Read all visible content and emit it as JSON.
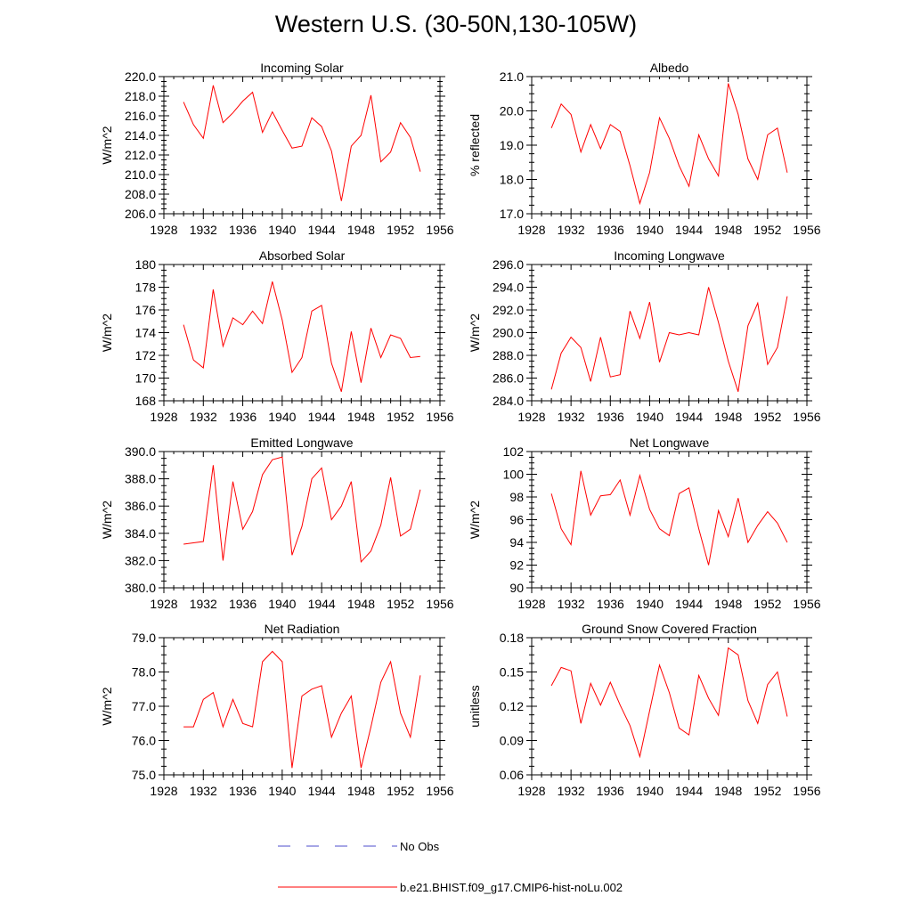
{
  "title": "Western U.S. (30-50N,130-105W)",
  "colors": {
    "model": "#ff0000",
    "obs": "#4d4dcc",
    "axis": "#000000"
  },
  "legend": {
    "obs_label": "No Obs",
    "model_label": "b.e21.BHIST.f09_g17.CMIP6-hist-noLu.002"
  },
  "chart_data": [
    {
      "type": "line",
      "title": "Incoming Solar",
      "xlabel": "",
      "ylabel": "W/m^2",
      "xlim": [
        1928,
        1956
      ],
      "ylim": [
        206,
        220
      ],
      "xticks": [
        1928,
        1932,
        1936,
        1940,
        1944,
        1948,
        1952,
        1956
      ],
      "yticks": [
        206,
        208,
        210,
        212,
        214,
        216,
        218,
        220
      ],
      "ydecimals": 1,
      "series": [
        {
          "x": [
            1930,
            1931,
            1932,
            1933,
            1934,
            1935,
            1936,
            1937,
            1938,
            1939,
            1940,
            1941,
            1942,
            1943,
            1944,
            1945,
            1946,
            1947,
            1948,
            1949,
            1950,
            1951,
            1952,
            1953,
            1954
          ],
          "values": [
            217.4,
            215.1,
            213.7,
            219.1,
            215.3,
            216.3,
            217.5,
            218.4,
            214.3,
            216.4,
            214.5,
            212.7,
            212.9,
            215.8,
            214.9,
            212.4,
            207.3,
            212.9,
            214.0,
            218.1,
            211.3,
            212.3,
            215.3,
            213.8,
            210.3
          ]
        }
      ]
    },
    {
      "type": "line",
      "title": "Albedo",
      "xlabel": "",
      "ylabel": "% reflected",
      "xlim": [
        1928,
        1956
      ],
      "ylim": [
        17,
        21
      ],
      "xticks": [
        1928,
        1932,
        1936,
        1940,
        1944,
        1948,
        1952,
        1956
      ],
      "yticks": [
        17,
        18,
        19,
        20,
        21
      ],
      "ydecimals": 1,
      "series": [
        {
          "x": [
            1930,
            1931,
            1932,
            1933,
            1934,
            1935,
            1936,
            1937,
            1938,
            1939,
            1940,
            1941,
            1942,
            1943,
            1944,
            1945,
            1946,
            1947,
            1948,
            1949,
            1950,
            1951,
            1952,
            1953,
            1954
          ],
          "values": [
            19.5,
            20.2,
            19.9,
            18.8,
            19.6,
            18.9,
            19.6,
            19.4,
            18.4,
            17.3,
            18.2,
            19.8,
            19.2,
            18.4,
            17.8,
            19.3,
            18.6,
            18.1,
            20.8,
            19.9,
            18.6,
            18.0,
            19.3,
            19.5,
            18.2
          ]
        }
      ]
    },
    {
      "type": "line",
      "title": "Absorbed Solar",
      "xlabel": "",
      "ylabel": "W/m^2",
      "xlim": [
        1928,
        1956
      ],
      "ylim": [
        168,
        180
      ],
      "xticks": [
        1928,
        1932,
        1936,
        1940,
        1944,
        1948,
        1952,
        1956
      ],
      "yticks": [
        168,
        170,
        172,
        174,
        176,
        178,
        180
      ],
      "ydecimals": 0,
      "series": [
        {
          "x": [
            1930,
            1931,
            1932,
            1933,
            1934,
            1935,
            1936,
            1937,
            1938,
            1939,
            1940,
            1941,
            1942,
            1943,
            1944,
            1945,
            1946,
            1947,
            1948,
            1949,
            1950,
            1951,
            1952,
            1953,
            1954
          ],
          "values": [
            174.7,
            171.6,
            170.9,
            177.8,
            172.8,
            175.3,
            174.7,
            175.9,
            174.8,
            178.5,
            175.1,
            170.5,
            171.8,
            175.9,
            176.4,
            171.3,
            168.8,
            174.1,
            169.6,
            174.4,
            171.8,
            173.8,
            173.5,
            171.8,
            171.9
          ]
        }
      ]
    },
    {
      "type": "line",
      "title": "Incoming Longwave",
      "xlabel": "",
      "ylabel": "W/m^2",
      "xlim": [
        1928,
        1956
      ],
      "ylim": [
        284,
        296
      ],
      "xticks": [
        1928,
        1932,
        1936,
        1940,
        1944,
        1948,
        1952,
        1956
      ],
      "yticks": [
        284,
        286,
        288,
        290,
        292,
        294,
        296
      ],
      "ydecimals": 1,
      "series": [
        {
          "x": [
            1930,
            1931,
            1932,
            1933,
            1934,
            1935,
            1936,
            1937,
            1938,
            1939,
            1940,
            1941,
            1942,
            1943,
            1944,
            1945,
            1946,
            1947,
            1948,
            1949,
            1950,
            1951,
            1952,
            1953,
            1954
          ],
          "values": [
            285.0,
            288.2,
            289.6,
            288.7,
            285.7,
            289.6,
            286.1,
            286.3,
            291.9,
            289.5,
            292.7,
            287.4,
            290.0,
            289.8,
            290.0,
            289.8,
            294.0,
            290.9,
            287.5,
            284.8,
            290.6,
            292.6,
            287.2,
            288.7,
            293.2
          ]
        }
      ]
    },
    {
      "type": "line",
      "title": "Emitted Longwave",
      "xlabel": "",
      "ylabel": "W/m^2",
      "xlim": [
        1928,
        1956
      ],
      "ylim": [
        380,
        390
      ],
      "xticks": [
        1928,
        1932,
        1936,
        1940,
        1944,
        1948,
        1952,
        1956
      ],
      "yticks": [
        380,
        382,
        384,
        386,
        388,
        390
      ],
      "ydecimals": 1,
      "series": [
        {
          "x": [
            1930,
            1931,
            1932,
            1933,
            1934,
            1935,
            1936,
            1937,
            1938,
            1939,
            1940,
            1941,
            1942,
            1943,
            1944,
            1945,
            1946,
            1947,
            1948,
            1949,
            1950,
            1951,
            1952,
            1953,
            1954
          ],
          "values": [
            383.2,
            383.3,
            383.4,
            389.0,
            382.0,
            387.8,
            384.3,
            385.6,
            388.3,
            389.4,
            389.6,
            382.4,
            384.5,
            388.0,
            388.8,
            385.0,
            386.0,
            387.8,
            381.9,
            382.7,
            384.6,
            388.1,
            383.8,
            384.3,
            387.2
          ]
        }
      ]
    },
    {
      "type": "line",
      "title": "Net Longwave",
      "xlabel": "",
      "ylabel": "W/m^2",
      "xlim": [
        1928,
        1956
      ],
      "ylim": [
        90,
        102
      ],
      "xticks": [
        1928,
        1932,
        1936,
        1940,
        1944,
        1948,
        1952,
        1956
      ],
      "yticks": [
        90,
        92,
        94,
        96,
        98,
        100,
        102
      ],
      "ydecimals": 0,
      "series": [
        {
          "x": [
            1930,
            1931,
            1932,
            1933,
            1934,
            1935,
            1936,
            1937,
            1938,
            1939,
            1940,
            1941,
            1942,
            1943,
            1944,
            1945,
            1946,
            1947,
            1948,
            1949,
            1950,
            1951,
            1952,
            1953,
            1954
          ],
          "values": [
            98.3,
            95.2,
            93.8,
            100.3,
            96.4,
            98.1,
            98.2,
            99.5,
            96.4,
            99.9,
            96.9,
            95.2,
            94.6,
            98.3,
            98.8,
            95.2,
            92.0,
            96.8,
            94.5,
            97.9,
            94.0,
            95.5,
            96.7,
            95.7,
            94.0
          ]
        }
      ]
    },
    {
      "type": "line",
      "title": "Net Radiation",
      "xlabel": "",
      "ylabel": "W/m^2",
      "xlim": [
        1928,
        1956
      ],
      "ylim": [
        75,
        79
      ],
      "xticks": [
        1928,
        1932,
        1936,
        1940,
        1944,
        1948,
        1952,
        1956
      ],
      "yticks": [
        75,
        76,
        77,
        78,
        79
      ],
      "ydecimals": 1,
      "series": [
        {
          "x": [
            1930,
            1931,
            1932,
            1933,
            1934,
            1935,
            1936,
            1937,
            1938,
            1939,
            1940,
            1941,
            1942,
            1943,
            1944,
            1945,
            1946,
            1947,
            1948,
            1949,
            1950,
            1951,
            1952,
            1953,
            1954
          ],
          "values": [
            76.4,
            76.4,
            77.2,
            77.4,
            76.4,
            77.2,
            76.5,
            76.4,
            78.3,
            78.6,
            78.3,
            75.2,
            77.3,
            77.5,
            77.6,
            76.1,
            76.8,
            77.3,
            75.2,
            76.4,
            77.7,
            78.3,
            76.8,
            76.1,
            77.9
          ]
        }
      ]
    },
    {
      "type": "line",
      "title": "Ground Snow Covered Fraction",
      "xlabel": "",
      "ylabel": "unitless",
      "xlim": [
        1928,
        1956
      ],
      "ylim": [
        0.06,
        0.18
      ],
      "xticks": [
        1928,
        1932,
        1936,
        1940,
        1944,
        1948,
        1952,
        1956
      ],
      "yticks": [
        0.06,
        0.09,
        0.12,
        0.15,
        0.18
      ],
      "ydecimals": 2,
      "series": [
        {
          "x": [
            1930,
            1931,
            1932,
            1933,
            1934,
            1935,
            1936,
            1937,
            1938,
            1939,
            1940,
            1941,
            1942,
            1943,
            1944,
            1945,
            1946,
            1947,
            1948,
            1949,
            1950,
            1951,
            1952,
            1953,
            1954
          ],
          "values": [
            0.138,
            0.154,
            0.151,
            0.105,
            0.14,
            0.121,
            0.141,
            0.121,
            0.103,
            0.076,
            0.116,
            0.156,
            0.132,
            0.101,
            0.095,
            0.147,
            0.127,
            0.112,
            0.171,
            0.165,
            0.125,
            0.105,
            0.139,
            0.15,
            0.111
          ]
        }
      ]
    }
  ]
}
